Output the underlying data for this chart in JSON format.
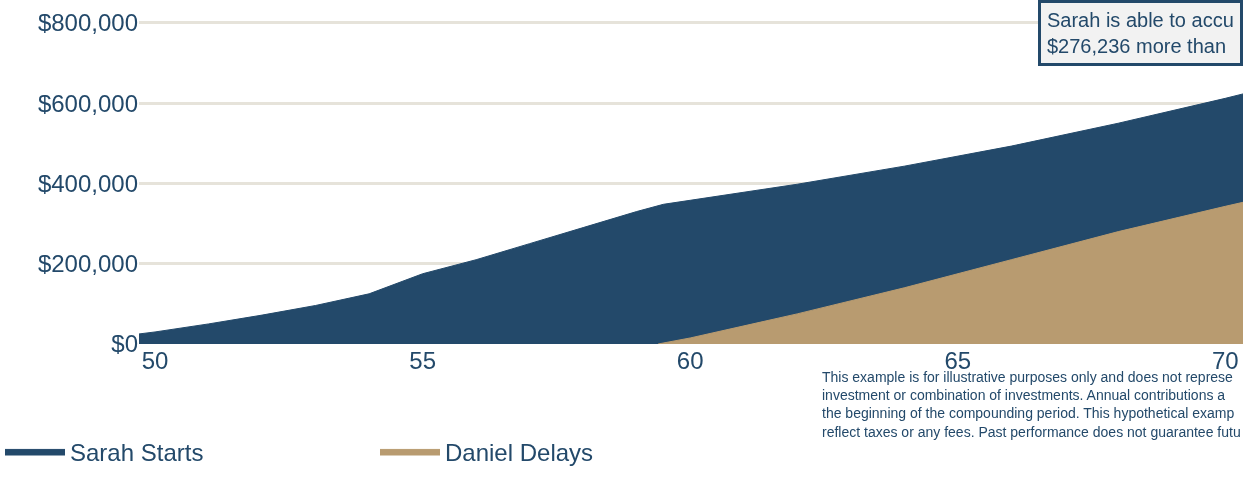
{
  "chart_data": {
    "type": "area",
    "series": [
      {
        "name": "Sarah Starts",
        "color": "#23496a",
        "x": [
          49.7,
          50,
          51,
          52,
          53,
          54,
          55,
          56,
          57,
          58,
          59,
          59.5,
          60,
          62,
          64,
          66,
          68,
          70,
          70.33
        ],
        "values": [
          25000,
          30000,
          50000,
          72000,
          96000,
          125000,
          175000,
          210000,
          250000,
          290000,
          330000,
          348000,
          358000,
          398000,
          443000,
          493000,
          550000,
          612000,
          623000
        ]
      },
      {
        "name": "Daniel Delays",
        "color": "#b89b70",
        "x": [
          59.4,
          60,
          62,
          64,
          66,
          68,
          70,
          70.33
        ],
        "values": [
          0,
          15000,
          75000,
          140000,
          210000,
          280000,
          343000,
          353000
        ]
      }
    ],
    "xlim": [
      49.7,
      70.33
    ],
    "xticks": [
      50,
      55,
      60,
      65,
      70
    ],
    "ylim": [
      0,
      857000
    ],
    "yticks": [
      {
        "value": 0,
        "label": "$0"
      },
      {
        "value": 200000,
        "label": "$200,000"
      },
      {
        "value": 400000,
        "label": "$400,000"
      },
      {
        "value": 600000,
        "label": "$600,000"
      },
      {
        "value": 800000,
        "label": "$800,000"
      }
    ],
    "grid": "y",
    "legend": "bottom left",
    "annotations": [
      "Sarah is able to accu\n$276,236 more than",
      "This example is for illustrative purposes only and does not represe\ninvestment or combination of investments. Annual contributions a\nthe beginning of the compounding period. This hypothetical examp\nreflect taxes or any fees. Past performance does not guarantee futu"
    ]
  }
}
